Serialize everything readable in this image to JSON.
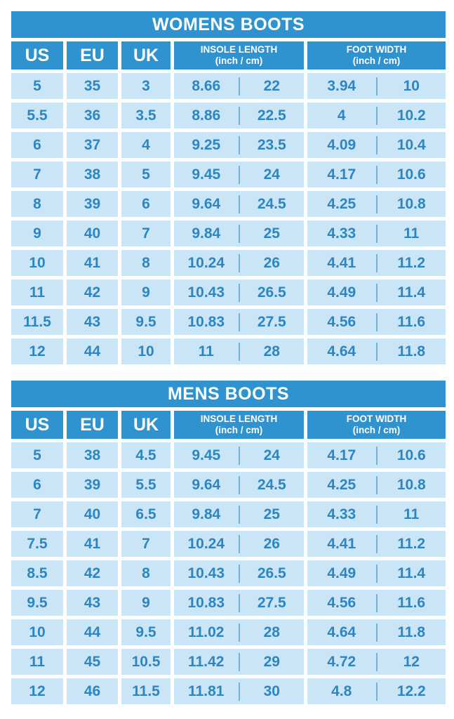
{
  "palette": {
    "header_blue": "#2e93cf",
    "row_light_blue": "#c9e5f6",
    "row_text_blue": "#2e86c1",
    "divider_blue": "#74b2d8",
    "header_text": "#ffffff",
    "background": "#ffffff"
  },
  "chart_data": [
    {
      "type": "table",
      "title": "WOMENS BOOTS",
      "columns": {
        "us": "US",
        "eu": "EU",
        "uk": "UK",
        "insole_title": "INSOLE LENGTH",
        "insole_sub": "(inch / cm)",
        "foot_title": "FOOT WIDTH",
        "foot_sub": "(inch / cm)"
      },
      "rows": [
        {
          "us": "5",
          "eu": "35",
          "uk": "3",
          "insole_in": "8.66",
          "insole_cm": "22",
          "width_in": "3.94",
          "width_cm": "10"
        },
        {
          "us": "5.5",
          "eu": "36",
          "uk": "3.5",
          "insole_in": "8.86",
          "insole_cm": "22.5",
          "width_in": "4",
          "width_cm": "10.2"
        },
        {
          "us": "6",
          "eu": "37",
          "uk": "4",
          "insole_in": "9.25",
          "insole_cm": "23.5",
          "width_in": "4.09",
          "width_cm": "10.4"
        },
        {
          "us": "7",
          "eu": "38",
          "uk": "5",
          "insole_in": "9.45",
          "insole_cm": "24",
          "width_in": "4.17",
          "width_cm": "10.6"
        },
        {
          "us": "8",
          "eu": "39",
          "uk": "6",
          "insole_in": "9.64",
          "insole_cm": "24.5",
          "width_in": "4.25",
          "width_cm": "10.8"
        },
        {
          "us": "9",
          "eu": "40",
          "uk": "7",
          "insole_in": "9.84",
          "insole_cm": "25",
          "width_in": "4.33",
          "width_cm": "11"
        },
        {
          "us": "10",
          "eu": "41",
          "uk": "8",
          "insole_in": "10.24",
          "insole_cm": "26",
          "width_in": "4.41",
          "width_cm": "11.2"
        },
        {
          "us": "11",
          "eu": "42",
          "uk": "9",
          "insole_in": "10.43",
          "insole_cm": "26.5",
          "width_in": "4.49",
          "width_cm": "11.4"
        },
        {
          "us": "11.5",
          "eu": "43",
          "uk": "9.5",
          "insole_in": "10.83",
          "insole_cm": "27.5",
          "width_in": "4.56",
          "width_cm": "11.6"
        },
        {
          "us": "12",
          "eu": "44",
          "uk": "10",
          "insole_in": "11",
          "insole_cm": "28",
          "width_in": "4.64",
          "width_cm": "11.8"
        }
      ]
    },
    {
      "type": "table",
      "title": "MENS BOOTS",
      "columns": {
        "us": "US",
        "eu": "EU",
        "uk": "UK",
        "insole_title": "INSOLE LENGTH",
        "insole_sub": "(inch / cm)",
        "foot_title": "FOOT WIDTH",
        "foot_sub": "(inch / cm)"
      },
      "rows": [
        {
          "us": "5",
          "eu": "38",
          "uk": "4.5",
          "insole_in": "9.45",
          "insole_cm": "24",
          "width_in": "4.17",
          "width_cm": "10.6"
        },
        {
          "us": "6",
          "eu": "39",
          "uk": "5.5",
          "insole_in": "9.64",
          "insole_cm": "24.5",
          "width_in": "4.25",
          "width_cm": "10.8"
        },
        {
          "us": "7",
          "eu": "40",
          "uk": "6.5",
          "insole_in": "9.84",
          "insole_cm": "25",
          "width_in": "4.33",
          "width_cm": "11"
        },
        {
          "us": "7.5",
          "eu": "41",
          "uk": "7",
          "insole_in": "10.24",
          "insole_cm": "26",
          "width_in": "4.41",
          "width_cm": "11.2"
        },
        {
          "us": "8.5",
          "eu": "42",
          "uk": "8",
          "insole_in": "10.43",
          "insole_cm": "26.5",
          "width_in": "4.49",
          "width_cm": "11.4"
        },
        {
          "us": "9.5",
          "eu": "43",
          "uk": "9",
          "insole_in": "10.83",
          "insole_cm": "27.5",
          "width_in": "4.56",
          "width_cm": "11.6"
        },
        {
          "us": "10",
          "eu": "44",
          "uk": "9.5",
          "insole_in": "11.02",
          "insole_cm": "28",
          "width_in": "4.64",
          "width_cm": "11.8"
        },
        {
          "us": "11",
          "eu": "45",
          "uk": "10.5",
          "insole_in": "11.42",
          "insole_cm": "29",
          "width_in": "4.72",
          "width_cm": "12"
        },
        {
          "us": "12",
          "eu": "46",
          "uk": "11.5",
          "insole_in": "11.81",
          "insole_cm": "30",
          "width_in": "4.8",
          "width_cm": "12.2"
        }
      ]
    }
  ]
}
